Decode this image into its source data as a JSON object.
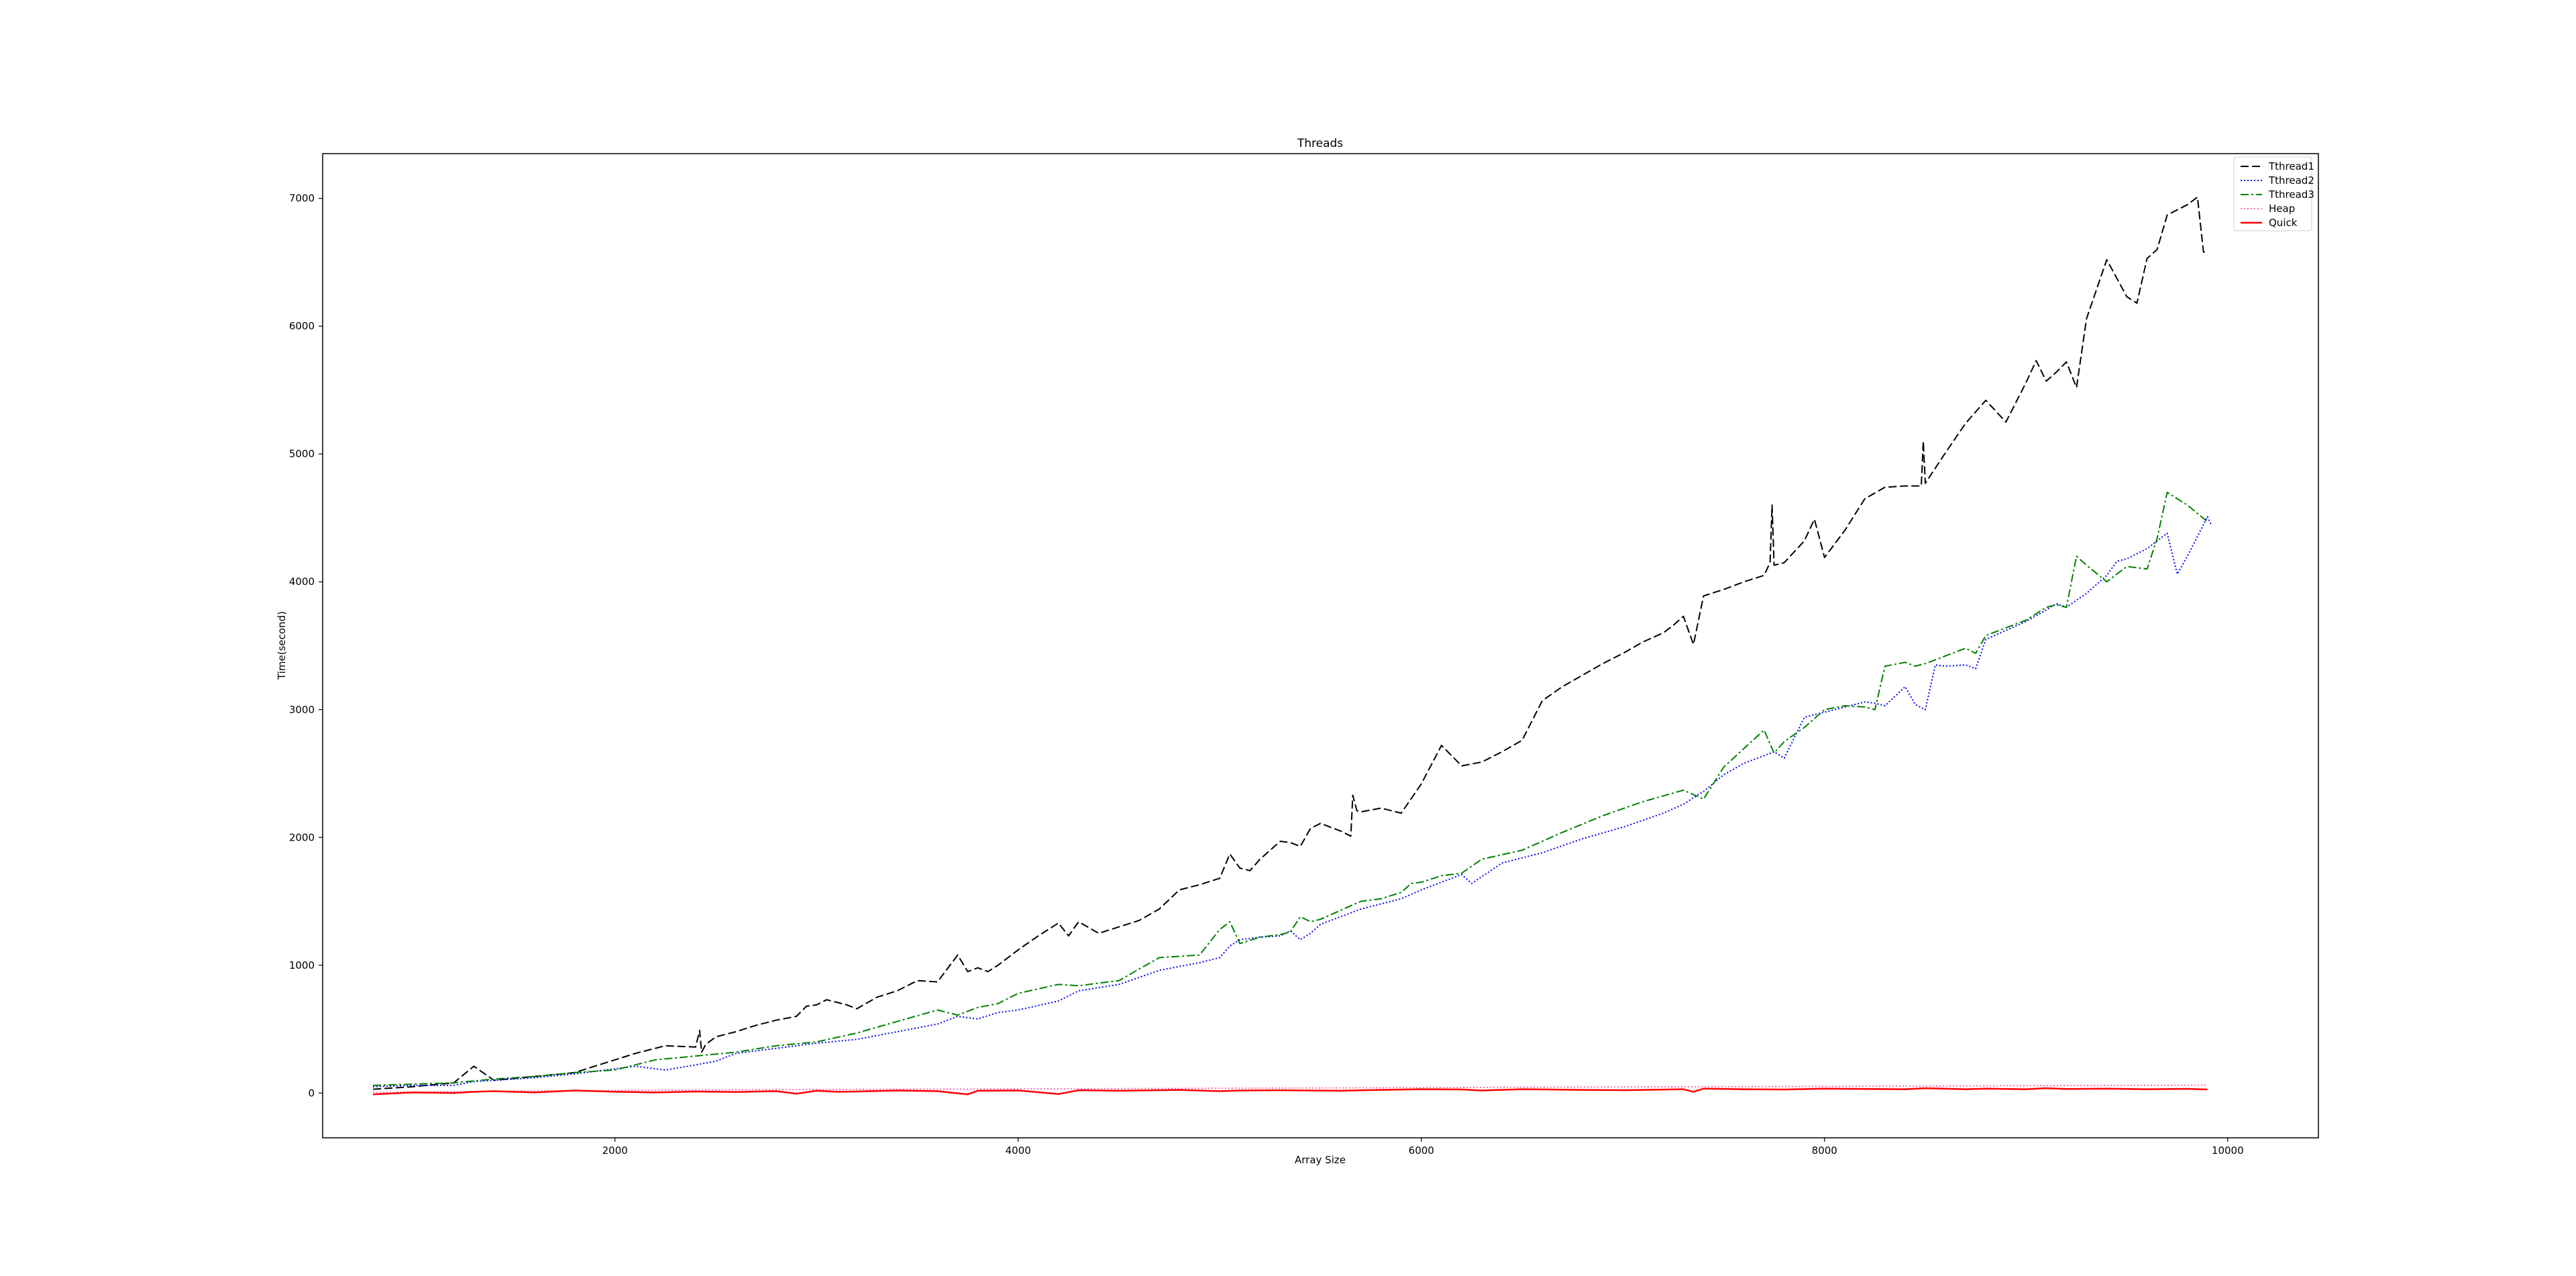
{
  "chart_data": {
    "type": "line",
    "title": "Threads",
    "xlabel": "Array Size",
    "ylabel": "Time(second)",
    "xlim": [
      550,
      10450
    ],
    "ylim": [
      -350,
      7350
    ],
    "xticks": [
      2000,
      4000,
      6000,
      8000,
      10000
    ],
    "yticks": [
      0,
      1000,
      2000,
      3000,
      4000,
      5000,
      6000,
      7000
    ],
    "grid": false,
    "legend_position": "top-right",
    "series": [
      {
        "name": "Tthread1",
        "color": "#000000",
        "dash": "dashed",
        "x": [
          800,
          1000,
          1200,
          1300,
          1400,
          1600,
          1800,
          2000,
          2100,
          2250,
          2400,
          2420,
          2430,
          2450,
          2500,
          2600,
          2700,
          2800,
          2900,
          2950,
          3000,
          3050,
          3100,
          3150,
          3200,
          3300,
          3400,
          3500,
          3600,
          3700,
          3750,
          3800,
          3850,
          3900,
          4000,
          4100,
          4200,
          4250,
          4300,
          4400,
          4500,
          4600,
          4700,
          4800,
          4900,
          5000,
          5050,
          5100,
          5150,
          5200,
          5300,
          5350,
          5400,
          5450,
          5500,
          5600,
          5650,
          5660,
          5680,
          5700,
          5800,
          5900,
          6000,
          6100,
          6200,
          6300,
          6400,
          6500,
          6600,
          6700,
          6800,
          6900,
          7000,
          7100,
          7200,
          7250,
          7300,
          7350,
          7400,
          7500,
          7600,
          7700,
          7730,
          7740,
          7750,
          7800,
          7900,
          7950,
          8000,
          8100,
          8200,
          8300,
          8400,
          8480,
          8490,
          8500,
          8600,
          8700,
          8800,
          8900,
          9000,
          9050,
          9100,
          9150,
          9200,
          9250,
          9300,
          9400,
          9500,
          9550,
          9600,
          9650,
          9700,
          9800,
          9850,
          9880,
          9900
        ],
        "y": [
          30,
          50,
          80,
          210,
          100,
          130,
          160,
          260,
          310,
          370,
          360,
          490,
          320,
          380,
          440,
          480,
          530,
          570,
          600,
          680,
          690,
          730,
          710,
          690,
          660,
          750,
          800,
          880,
          870,
          1080,
          950,
          980,
          950,
          1000,
          1120,
          1230,
          1330,
          1230,
          1340,
          1250,
          1300,
          1350,
          1440,
          1590,
          1630,
          1680,
          1870,
          1760,
          1740,
          1830,
          1970,
          1960,
          1930,
          2070,
          2110,
          2050,
          2010,
          2330,
          2210,
          2200,
          2230,
          2190,
          2420,
          2720,
          2560,
          2590,
          2670,
          2760,
          3070,
          3180,
          3270,
          3360,
          3440,
          3530,
          3600,
          3660,
          3730,
          3510,
          3890,
          3940,
          4000,
          4050,
          4150,
          4600,
          4130,
          4150,
          4320,
          4490,
          4190,
          4400,
          4650,
          4740,
          4750,
          4750,
          5100,
          4770,
          5010,
          5240,
          5420,
          5250,
          5560,
          5730,
          5570,
          5640,
          5720,
          5520,
          6060,
          6520,
          6230,
          6180,
          6530,
          6600,
          6870,
          6950,
          7010,
          6580,
          6580
        ]
      },
      {
        "name": "Tthread2",
        "color": "#0000ff",
        "dash": "dotted",
        "x": [
          800,
          1000,
          1200,
          1300,
          1400,
          1600,
          1800,
          2000,
          2100,
          2250,
          2400,
          2500,
          2600,
          2800,
          3000,
          3200,
          3400,
          3600,
          3700,
          3800,
          3900,
          4000,
          4200,
          4300,
          4500,
          4700,
          4900,
          5000,
          5050,
          5100,
          5200,
          5300,
          5350,
          5400,
          5450,
          5500,
          5700,
          5900,
          6000,
          6100,
          6200,
          6250,
          6400,
          6600,
          6800,
          7000,
          7200,
          7300,
          7400,
          7500,
          7600,
          7700,
          7750,
          7800,
          7900,
          8000,
          8100,
          8200,
          8250,
          8300,
          8400,
          8450,
          8500,
          8550,
          8600,
          8700,
          8750,
          8800,
          9000,
          9100,
          9150,
          9200,
          9300,
          9400,
          9450,
          9500,
          9600,
          9700,
          9750,
          9800,
          9900,
          9920
        ],
        "y": [
          50,
          60,
          60,
          90,
          100,
          120,
          150,
          190,
          210,
          180,
          220,
          250,
          310,
          350,
          390,
          420,
          480,
          540,
          600,
          580,
          630,
          650,
          720,
          800,
          850,
          960,
          1020,
          1060,
          1150,
          1200,
          1220,
          1230,
          1270,
          1200,
          1250,
          1320,
          1440,
          1520,
          1590,
          1650,
          1710,
          1640,
          1800,
          1880,
          1990,
          2080,
          2190,
          2260,
          2360,
          2490,
          2580,
          2640,
          2670,
          2620,
          2940,
          2980,
          3020,
          3060,
          3050,
          3030,
          3180,
          3040,
          3000,
          3350,
          3340,
          3350,
          3320,
          3550,
          3690,
          3780,
          3830,
          3800,
          3910,
          4050,
          4160,
          4180,
          4260,
          4380,
          4060,
          4200,
          4510,
          4440
        ]
      },
      {
        "name": "Tthread3",
        "color": "#008000",
        "dash": "dashdot",
        "x": [
          800,
          1000,
          1200,
          1400,
          1600,
          1800,
          2000,
          2200,
          2400,
          2600,
          2800,
          3000,
          3200,
          3400,
          3600,
          3700,
          3800,
          3900,
          4000,
          4200,
          4300,
          4500,
          4700,
          4900,
          5000,
          5050,
          5100,
          5200,
          5300,
          5350,
          5400,
          5450,
          5500,
          5700,
          5800,
          5900,
          5950,
          6000,
          6100,
          6200,
          6300,
          6500,
          6700,
          6900,
          7100,
          7300,
          7400,
          7500,
          7700,
          7750,
          7800,
          7900,
          8000,
          8100,
          8200,
          8250,
          8300,
          8400,
          8450,
          8500,
          8600,
          8700,
          8750,
          8800,
          9000,
          9100,
          9150,
          9200,
          9250,
          9300,
          9400,
          9500,
          9600,
          9650,
          9700,
          9800,
          9900
        ],
        "y": [
          60,
          70,
          80,
          110,
          130,
          160,
          180,
          260,
          290,
          320,
          370,
          400,
          470,
          560,
          650,
          610,
          670,
          700,
          780,
          850,
          840,
          880,
          1060,
          1080,
          1280,
          1340,
          1170,
          1220,
          1240,
          1260,
          1380,
          1340,
          1360,
          1500,
          1520,
          1570,
          1640,
          1650,
          1700,
          1720,
          1830,
          1900,
          2040,
          2170,
          2280,
          2370,
          2300,
          2550,
          2840,
          2660,
          2750,
          2860,
          3000,
          3030,
          3020,
          3000,
          3340,
          3370,
          3340,
          3360,
          3420,
          3480,
          3440,
          3580,
          3700,
          3800,
          3820,
          3800,
          4200,
          4130,
          4000,
          4120,
          4100,
          4340,
          4700,
          4600,
          4470
        ]
      },
      {
        "name": "Heap",
        "color": "#ff69b4",
        "dash": "dotted",
        "x": [
          800,
          1000,
          1500,
          2000,
          2500,
          3000,
          3500,
          4000,
          4500,
          5000,
          5500,
          6000,
          6500,
          7000,
          7500,
          8000,
          8500,
          9000,
          9500,
          9900
        ],
        "y": [
          5,
          8,
          15,
          20,
          25,
          28,
          30,
          32,
          35,
          38,
          40,
          42,
          45,
          48,
          50,
          52,
          55,
          58,
          60,
          62
        ]
      },
      {
        "name": "Quick",
        "color": "#ff0000",
        "dash": "solid",
        "x": [
          800,
          1000,
          1200,
          1300,
          1400,
          1600,
          1800,
          2000,
          2200,
          2400,
          2600,
          2800,
          2900,
          3000,
          3100,
          3200,
          3400,
          3600,
          3750,
          3800,
          4000,
          4200,
          4300,
          4500,
          4800,
          5000,
          5100,
          5300,
          5600,
          5800,
          6000,
          6200,
          6300,
          6500,
          6800,
          7000,
          7300,
          7350,
          7400,
          7600,
          7800,
          8000,
          8200,
          8400,
          8500,
          8700,
          8800,
          9000,
          9100,
          9200,
          9400,
          9600,
          9800,
          9900
        ],
        "y": [
          -10,
          5,
          0,
          10,
          15,
          5,
          20,
          10,
          5,
          12,
          8,
          15,
          -5,
          18,
          10,
          12,
          20,
          15,
          -10,
          18,
          20,
          -8,
          22,
          18,
          25,
          15,
          20,
          22,
          18,
          25,
          30,
          28,
          20,
          30,
          25,
          22,
          30,
          10,
          35,
          30,
          28,
          35,
          32,
          30,
          38,
          30,
          35,
          30,
          38,
          32,
          35,
          30,
          33,
          28
        ]
      }
    ]
  }
}
